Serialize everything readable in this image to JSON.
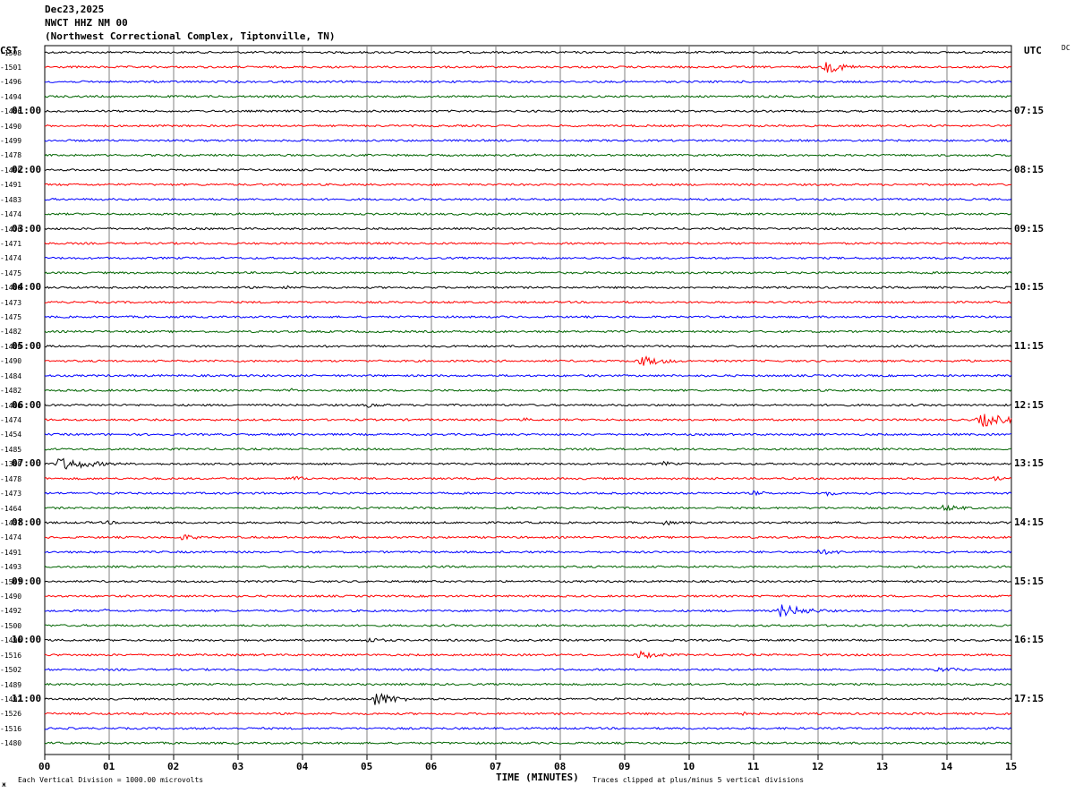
{
  "header": {
    "date": "Dec23,2025",
    "station": "NWCT HHZ NM 00",
    "location": "(Northwest Correctional Complex, Tiptonville, TN)"
  },
  "left_zone": "CST",
  "right_zone": "UTC",
  "dc_header": "DC",
  "footer": {
    "vertical_division": "Each Vertical Division = 1000.00 microvolts",
    "xlabel": "TIME (MINUTES)",
    "clip_note": "Traces clipped at plus/minus 5 vertical divisions",
    "corner_mark": "ж"
  },
  "colors": {
    "trace_cycle": [
      "#000000",
      "#ff0000",
      "#0000ff",
      "#006400"
    ],
    "grid": "#808080"
  },
  "chart_data": {
    "type": "line",
    "xlabel": "TIME (MINUTES)",
    "xlim": [
      0,
      15
    ],
    "x_ticks": [
      "00",
      "01",
      "02",
      "03",
      "04",
      "05",
      "06",
      "07",
      "08",
      "09",
      "10",
      "11",
      "12",
      "13",
      "14",
      "15"
    ],
    "rows_per_hour": 4,
    "row_minutes": 15,
    "cst_hour_labels": [
      "01:00",
      "02:00",
      "03:00",
      "04:00",
      "05:00",
      "06:00",
      "07:00",
      "08:00",
      "09:00",
      "10:00",
      "11:00"
    ],
    "utc_hour_labels": [
      "07:15",
      "08:15",
      "09:15",
      "10:15",
      "11:15",
      "12:15",
      "13:15",
      "14:15",
      "15:15",
      "16:15",
      "17:15"
    ],
    "dc_offsets": [
      -1508,
      -1501,
      -1496,
      -1494,
      -1486,
      -1490,
      -1499,
      -1478,
      -1490,
      -1491,
      -1483,
      -1474,
      -1476,
      -1471,
      -1474,
      -1475,
      -1480,
      -1473,
      -1475,
      -1482,
      -1489,
      -1490,
      -1484,
      -1482,
      -1480,
      -1474,
      -1454,
      -1485,
      -1380,
      -1478,
      -1473,
      -1464,
      -1437,
      -1474,
      -1491,
      -1493,
      -1507,
      -1490,
      -1492,
      -1500,
      -1496,
      -1516,
      -1502,
      -1489,
      -1492,
      -1526,
      -1516,
      -1480
    ],
    "events": [
      {
        "row": 1,
        "minute": 12.1,
        "amp": 7,
        "dur": 0.9
      },
      {
        "row": 4,
        "minute": 3.4,
        "amp": 2,
        "dur": 0.3
      },
      {
        "row": 7,
        "minute": 7.6,
        "amp": 2,
        "dur": 0.3
      },
      {
        "row": 16,
        "minute": 3.7,
        "amp": 3,
        "dur": 0.5
      },
      {
        "row": 21,
        "minute": 9.2,
        "amp": 7,
        "dur": 0.9
      },
      {
        "row": 21,
        "minute": 14.2,
        "amp": 3,
        "dur": 0.5
      },
      {
        "row": 23,
        "minute": 3.8,
        "amp": 3,
        "dur": 0.5
      },
      {
        "row": 24,
        "minute": 5.0,
        "amp": 3,
        "dur": 0.8
      },
      {
        "row": 25,
        "minute": 14.5,
        "amp": 9,
        "dur": 1.0
      },
      {
        "row": 25,
        "minute": 7.4,
        "amp": 3,
        "dur": 0.4
      },
      {
        "row": 28,
        "minute": 0.2,
        "amp": 8,
        "dur": 1.2
      },
      {
        "row": 28,
        "minute": 9.6,
        "amp": 3,
        "dur": 0.5
      },
      {
        "row": 29,
        "minute": 3.8,
        "amp": 4,
        "dur": 0.6
      },
      {
        "row": 29,
        "minute": 14.7,
        "amp": 4,
        "dur": 0.4
      },
      {
        "row": 30,
        "minute": 11.0,
        "amp": 3,
        "dur": 0.6
      },
      {
        "row": 30,
        "minute": 12.1,
        "amp": 4,
        "dur": 0.4
      },
      {
        "row": 31,
        "minute": 13.9,
        "amp": 4,
        "dur": 1.0
      },
      {
        "row": 32,
        "minute": 9.6,
        "amp": 4,
        "dur": 0.4
      },
      {
        "row": 32,
        "minute": 0.9,
        "amp": 3,
        "dur": 0.6
      },
      {
        "row": 33,
        "minute": 2.1,
        "amp": 4,
        "dur": 0.7
      },
      {
        "row": 34,
        "minute": 12.0,
        "amp": 3,
        "dur": 1.5
      },
      {
        "row": 38,
        "minute": 11.4,
        "amp": 8,
        "dur": 1.0
      },
      {
        "row": 38,
        "minute": 0.9,
        "amp": 3,
        "dur": 0.3
      },
      {
        "row": 40,
        "minute": 5.0,
        "amp": 3,
        "dur": 1.0
      },
      {
        "row": 41,
        "minute": 9.2,
        "amp": 5,
        "dur": 0.9
      },
      {
        "row": 42,
        "minute": 13.8,
        "amp": 3,
        "dur": 1.5
      },
      {
        "row": 44,
        "minute": 5.1,
        "amp": 9,
        "dur": 0.8
      },
      {
        "row": 45,
        "minute": 10.7,
        "amp": 4,
        "dur": 0.5
      }
    ]
  }
}
